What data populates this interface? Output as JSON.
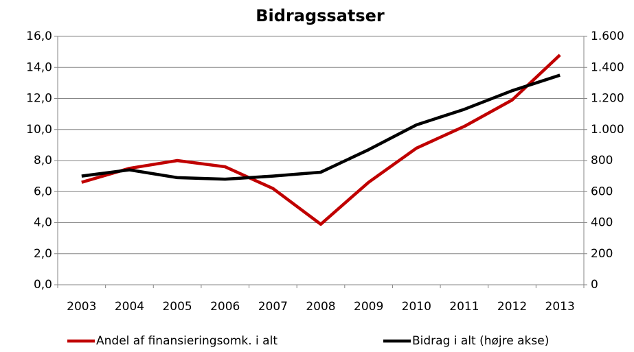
{
  "chart_data": {
    "type": "line",
    "title": "Bidragssatser",
    "categories": [
      "2003",
      "2004",
      "2005",
      "2006",
      "2007",
      "2008",
      "2009",
      "2010",
      "2011",
      "2012",
      "2013"
    ],
    "series": [
      {
        "name": "Andel af finansieringsomk. i alt",
        "color": "#c00000",
        "values": [
          6.6,
          7.5,
          8.0,
          7.6,
          6.2,
          3.9,
          6.6,
          8.8,
          10.2,
          11.9,
          14.8
        ]
      },
      {
        "name": "Bidrag i alt (højre akse)",
        "color": "#000000",
        "axis": "y2",
        "values": [
          700,
          740,
          690,
          680,
          700,
          725,
          870,
          1030,
          1130,
          1250,
          1350
        ]
      }
    ],
    "ylim": [
      0,
      16
    ],
    "yticks": [
      {
        "value": 0,
        "label": "0,0"
      },
      {
        "value": 2,
        "label": "2,0"
      },
      {
        "value": 4,
        "label": "4,0"
      },
      {
        "value": 6,
        "label": "6,0"
      },
      {
        "value": 8,
        "label": "8,0"
      },
      {
        "value": 10,
        "label": "10,0"
      },
      {
        "value": 12,
        "label": "12,0"
      },
      {
        "value": 14,
        "label": "14,0"
      },
      {
        "value": 16,
        "label": "16,0"
      }
    ],
    "y2lim": [
      0,
      1600
    ],
    "y2ticks": [
      0,
      200,
      400,
      600,
      800,
      {
        "value": 1000,
        "label": "1.000"
      },
      {
        "value": 1200,
        "label": "1.200"
      },
      {
        "value": 1400,
        "label": "1.400"
      },
      {
        "value": 1600,
        "label": "1.600"
      }
    ],
    "grid": true,
    "legend": "bottom"
  }
}
